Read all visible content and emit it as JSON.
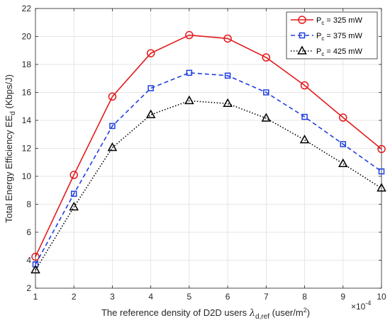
{
  "chart_data": {
    "type": "line",
    "title": "",
    "xlabel_main": "The reference density of D2D users ",
    "xlabel_symbol": "λ",
    "xlabel_sub": "d,ref",
    "xlabel_unit_open": " (user/m",
    "xlabel_unit_sup": "2",
    "xlabel_unit_close": ")",
    "ylabel_main": "Total Energy Efficiency EE",
    "ylabel_sub": "d",
    "ylabel_unit": " (Kbps/J)",
    "x_exponent_base": "×10",
    "x_exponent_power": "-4",
    "x": [
      1,
      2,
      3,
      4,
      5,
      6,
      7,
      8,
      9,
      10
    ],
    "xlim": [
      1,
      10
    ],
    "ylim": [
      2,
      22
    ],
    "xticks": [
      "1",
      "2",
      "3",
      "4",
      "5",
      "6",
      "7",
      "8",
      "9",
      "10"
    ],
    "yticks": [
      "2",
      "4",
      "6",
      "8",
      "10",
      "12",
      "14",
      "16",
      "18",
      "20",
      "22"
    ],
    "grid": true,
    "legend_position": "top-right",
    "series": [
      {
        "legend_prefix": "P",
        "legend_sub": "c",
        "legend_suffix": " = 325 mW",
        "color": "#e41a1c",
        "line_style": "solid",
        "marker": "circle",
        "values": [
          4.25,
          10.1,
          15.7,
          18.8,
          20.1,
          19.85,
          18.5,
          16.5,
          14.2,
          11.95
        ]
      },
      {
        "legend_prefix": "P",
        "legend_sub": "c",
        "legend_suffix": " = 375 mW",
        "color": "#1f3fe0",
        "line_style": "dashed",
        "marker": "square",
        "values": [
          3.7,
          8.75,
          13.6,
          16.3,
          17.4,
          17.2,
          16.0,
          14.25,
          12.3,
          10.35
        ]
      },
      {
        "legend_prefix": "P",
        "legend_sub": "c",
        "legend_suffix": " = 425 mW",
        "color": "#000000",
        "line_style": "dotted",
        "marker": "triangle",
        "values": [
          3.3,
          7.8,
          12.05,
          14.4,
          15.4,
          15.2,
          14.15,
          12.6,
          10.9,
          9.15
        ]
      }
    ]
  }
}
